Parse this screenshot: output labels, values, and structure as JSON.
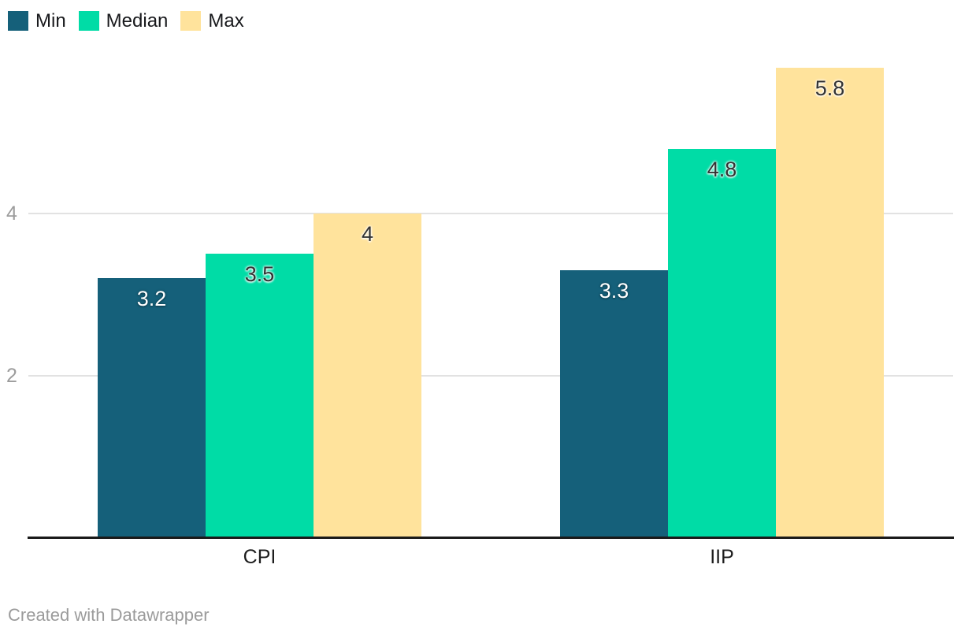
{
  "legend": {
    "items": [
      {
        "label": "Min",
        "color": "#15607a"
      },
      {
        "label": "Median",
        "color": "#00dca6"
      },
      {
        "label": "Max",
        "color": "#ffe39c"
      }
    ]
  },
  "footer": {
    "credit": "Created with Datawrapper"
  },
  "chart_data": {
    "type": "bar",
    "title": "",
    "xlabel": "",
    "ylabel": "",
    "categories": [
      "CPI",
      "IIP"
    ],
    "series": [
      {
        "name": "Min",
        "color": "#15607a",
        "values": [
          3.2,
          3.3
        ],
        "display_values": [
          "3.2",
          "3.3"
        ],
        "label_color": "#ffffff",
        "label_halo": "dark"
      },
      {
        "name": "Median",
        "color": "#00dca6",
        "values": [
          3.5,
          4.8
        ],
        "display_values": [
          "3.5",
          "4.8"
        ],
        "label_color": "#333333",
        "label_halo": "light"
      },
      {
        "name": "Max",
        "color": "#ffe39c",
        "values": [
          4,
          5.8
        ],
        "display_values": [
          "4",
          "5.8"
        ],
        "label_color": "#333333",
        "label_halo": "light"
      }
    ],
    "yticks": [
      2,
      4
    ],
    "ylim": [
      0,
      5.9
    ],
    "grid": "horizontal",
    "legend_position": "top-left"
  }
}
